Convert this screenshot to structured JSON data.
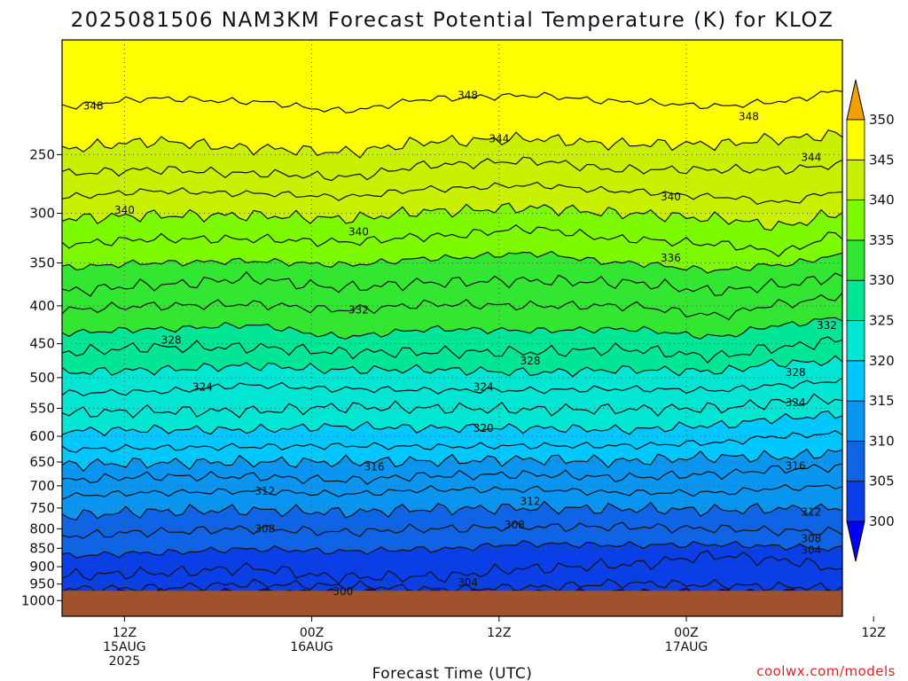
{
  "chart_data": {
    "type": "heatmap",
    "title": "2025081506 NAM3KM Forecast Potential Temperature (K) for KLOZ",
    "xlabel": "Forecast Time (UTC)",
    "ylabel": "",
    "units": "K",
    "x_range_hours": [
      -4,
      46
    ],
    "x_ticks": [
      {
        "hour": 0,
        "lines": [
          "12Z",
          "15AUG",
          "2025"
        ]
      },
      {
        "hour": 12,
        "lines": [
          "00Z",
          "16AUG"
        ]
      },
      {
        "hour": 24,
        "lines": [
          "12Z"
        ]
      },
      {
        "hour": 36,
        "lines": [
          "00Z",
          "17AUG"
        ]
      },
      {
        "hour": 48,
        "lines": [
          "12Z"
        ]
      }
    ],
    "y_scale": "log-pressure",
    "y_range_hpa": [
      1050,
      175
    ],
    "y_ticks": [
      1000,
      950,
      900,
      850,
      800,
      750,
      700,
      650,
      600,
      550,
      500,
      450,
      400,
      350,
      300,
      250
    ],
    "ground_level_hpa": 970,
    "grid": true,
    "colorbar": {
      "levels": [
        300,
        305,
        310,
        315,
        320,
        325,
        330,
        335,
        340,
        345,
        350
      ],
      "colors": [
        "#0000ff",
        "#0a3ee6",
        "#0f64e6",
        "#0a96f0",
        "#00c8ff",
        "#00e6d2",
        "#00e696",
        "#32e632",
        "#7dfa00",
        "#c8f000",
        "#ffff00",
        "#f0a000"
      ],
      "extend": "both",
      "placement": "right"
    },
    "contour_interval": 2,
    "series": [
      {
        "theta": 300,
        "pressure": [
          975,
          975,
          972,
          973,
          975,
          975,
          973,
          972,
          973,
          975
        ]
      },
      {
        "theta": 302,
        "pressure": [
          965,
          962,
          950,
          955,
          966,
          960,
          948,
          952,
          958,
          962
        ]
      },
      {
        "theta": 304,
        "pressure": [
          925,
          918,
          905,
          930,
          928,
          905,
          895,
          870,
          882,
          905
        ]
      },
      {
        "theta": 306,
        "pressure": [
          870,
          862,
          852,
          858,
          852,
          838,
          842,
          840,
          845,
          852
        ]
      },
      {
        "theta": 308,
        "pressure": [
          818,
          808,
          800,
          808,
          800,
          795,
          795,
          800,
          805,
          808
        ]
      },
      {
        "theta": 310,
        "pressure": [
          768,
          758,
          755,
          760,
          752,
          750,
          752,
          755,
          752,
          752
        ]
      },
      {
        "theta": 312,
        "pressure": [
          722,
          715,
          712,
          718,
          708,
          708,
          715,
          715,
          705,
          700
        ]
      },
      {
        "theta": 314,
        "pressure": [
          688,
          680,
          680,
          688,
          678,
          676,
          682,
          675,
          665,
          660
        ]
      },
      {
        "theta": 316,
        "pressure": [
          655,
          652,
          650,
          650,
          648,
          645,
          648,
          640,
          640,
          630
        ]
      },
      {
        "theta": 318,
        "pressure": [
          625,
          622,
          620,
          618,
          620,
          618,
          618,
          612,
          600,
          595
        ]
      },
      {
        "theta": 320,
        "pressure": [
          590,
          588,
          588,
          582,
          585,
          585,
          588,
          580,
          568,
          560
        ]
      },
      {
        "theta": 322,
        "pressure": [
          558,
          555,
          555,
          548,
          550,
          552,
          552,
          550,
          540,
          535
        ]
      },
      {
        "theta": 324,
        "pressure": [
          525,
          522,
          512,
          518,
          520,
          520,
          518,
          520,
          512,
          505
        ]
      },
      {
        "theta": 326,
        "pressure": [
          492,
          488,
          482,
          488,
          488,
          492,
          488,
          490,
          478,
          475
        ]
      },
      {
        "theta": 328,
        "pressure": [
          462,
          455,
          455,
          462,
          462,
          462,
          458,
          468,
          455,
          445
        ]
      },
      {
        "theta": 330,
        "pressure": [
          435,
          430,
          425,
          440,
          430,
          432,
          430,
          440,
          425,
          415
        ]
      },
      {
        "theta": 332,
        "pressure": [
          405,
          400,
          398,
          405,
          398,
          400,
          400,
          412,
          398,
          388
        ]
      },
      {
        "theta": 334,
        "pressure": [
          382,
          375,
          368,
          378,
          372,
          370,
          372,
          382,
          375,
          365
        ]
      },
      {
        "theta": 336,
        "pressure": [
          355,
          350,
          348,
          352,
          345,
          340,
          350,
          358,
          352,
          342
        ]
      },
      {
        "theta": 338,
        "pressure": [
          330,
          325,
          325,
          328,
          322,
          315,
          325,
          330,
          338,
          320
        ]
      },
      {
        "theta": 340,
        "pressure": [
          305,
          302,
          302,
          305,
          298,
          295,
          300,
          305,
          312,
          300
        ]
      },
      {
        "theta": 342,
        "pressure": [
          285,
          280,
          282,
          285,
          278,
          275,
          280,
          285,
          290,
          280
        ]
      },
      {
        "theta": 344,
        "pressure": [
          265,
          262,
          265,
          268,
          258,
          255,
          262,
          262,
          262,
          258
        ]
      },
      {
        "theta": 346,
        "pressure": [
          245,
          240,
          245,
          248,
          240,
          238,
          242,
          242,
          238,
          235
        ]
      },
      {
        "theta": 348,
        "pressure": [
          215,
          210,
          212,
          218,
          210,
          208,
          212,
          215,
          212,
          205
        ]
      }
    ],
    "series_hours": [
      -4,
      2,
      8,
      14,
      20,
      26,
      32,
      38,
      42,
      46
    ],
    "contour_labels": [
      {
        "text": "348",
        "hour": -2,
        "pressure": 215
      },
      {
        "text": "348",
        "hour": 22,
        "pressure": 208
      },
      {
        "text": "348",
        "hour": 40,
        "pressure": 222
      },
      {
        "text": "344",
        "hour": 24,
        "pressure": 238
      },
      {
        "text": "344",
        "hour": 44,
        "pressure": 252
      },
      {
        "text": "340",
        "hour": 0,
        "pressure": 297
      },
      {
        "text": "340",
        "hour": 15,
        "pressure": 318
      },
      {
        "text": "340",
        "hour": 35,
        "pressure": 285
      },
      {
        "text": "336",
        "hour": 35,
        "pressure": 345
      },
      {
        "text": "332",
        "hour": 15,
        "pressure": 405
      },
      {
        "text": "332",
        "hour": 45,
        "pressure": 425
      },
      {
        "text": "328",
        "hour": 3,
        "pressure": 445
      },
      {
        "text": "328",
        "hour": 26,
        "pressure": 475
      },
      {
        "text": "328",
        "hour": 43,
        "pressure": 492
      },
      {
        "text": "324",
        "hour": 5,
        "pressure": 515
      },
      {
        "text": "324",
        "hour": 23,
        "pressure": 515
      },
      {
        "text": "324",
        "hour": 43,
        "pressure": 540
      },
      {
        "text": "320",
        "hour": 23,
        "pressure": 585
      },
      {
        "text": "316",
        "hour": 16,
        "pressure": 660
      },
      {
        "text": "316",
        "hour": 43,
        "pressure": 658
      },
      {
        "text": "312",
        "hour": 9,
        "pressure": 712
      },
      {
        "text": "312",
        "hour": 26,
        "pressure": 735
      },
      {
        "text": "312",
        "hour": 44,
        "pressure": 760
      },
      {
        "text": "308",
        "hour": 9,
        "pressure": 800
      },
      {
        "text": "308",
        "hour": 25,
        "pressure": 790
      },
      {
        "text": "308",
        "hour": 44,
        "pressure": 825
      },
      {
        "text": "304",
        "hour": 44,
        "pressure": 855
      },
      {
        "text": "304",
        "hour": 22,
        "pressure": 945
      },
      {
        "text": "300",
        "hour": 14,
        "pressure": 972
      }
    ]
  },
  "credit": "coolwx.com/models",
  "credit_color": "#e02020",
  "ground_color": "#a0522d"
}
